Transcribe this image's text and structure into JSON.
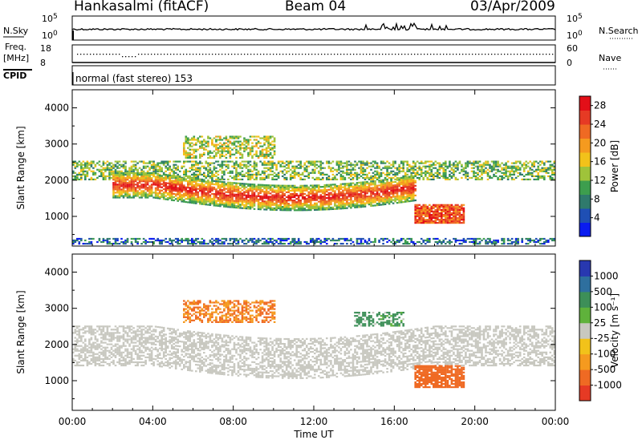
{
  "header": {
    "station": "Hankasalmi (fitACF)",
    "beam": "Beam 04",
    "date": "03/Apr/2009"
  },
  "status_panels": {
    "nsky": {
      "label": "N.Sky",
      "ticks": [
        "10^5",
        "10^0"
      ]
    },
    "nsearch": {
      "label": "N.Search",
      "ticks": [
        "10^5",
        "10^0"
      ]
    },
    "freq": {
      "label_lines": [
        "Freq.",
        "[MHz]"
      ],
      "ticks": [
        "18",
        "8"
      ]
    },
    "nave": {
      "label": "Nave",
      "ticks": [
        "60",
        "0"
      ]
    },
    "cpid": {
      "label": "CPID",
      "text": "normal (fast stereo) 153"
    }
  },
  "chart_data": [
    {
      "type": "heatmap",
      "name": "power",
      "ylabel": "Slant Range [km]",
      "xlabel": "Time UT",
      "x_ticks": [
        "00:00",
        "04:00",
        "08:00",
        "12:00",
        "16:00",
        "20:00",
        "00:00"
      ],
      "x_range_hours": [
        0,
        24
      ],
      "y_ticks": [
        "1000",
        "2000",
        "3000",
        "4000"
      ],
      "y_range_km": [
        180,
        4500
      ],
      "colorbar": {
        "label": "Power [dB]",
        "ticks": [
          "4",
          "8",
          "12",
          "16",
          "20",
          "24",
          "28"
        ],
        "range": [
          0,
          30
        ],
        "colors": [
          "#0a1cf0",
          "#1f4fb4",
          "#2f7a6c",
          "#3d9e4e",
          "#9fc33a",
          "#f2c21a",
          "#f59a1f",
          "#ef6a23",
          "#e63a24",
          "#e30f18"
        ]
      },
      "structures": [
        {
          "feature": "main scatter band",
          "hours": [
            0,
            24
          ],
          "range_km": [
            2000,
            2500
          ],
          "power_db": 12
        },
        {
          "feature": "intense band",
          "hours": [
            2,
            17
          ],
          "range_km": [
            1500,
            2200
          ],
          "power_db": 24
        },
        {
          "feature": "near-range ground clutter",
          "hours": [
            0,
            24
          ],
          "range_km": [
            180,
            400
          ],
          "power_db": 6
        },
        {
          "feature": "upper patch",
          "hours": [
            5.5,
            10
          ],
          "range_km": [
            2600,
            3200
          ],
          "power_db": 14
        },
        {
          "feature": "afternoon blob",
          "hours": [
            17,
            19.5
          ],
          "range_km": [
            800,
            1300
          ],
          "power_db": 24
        }
      ]
    },
    {
      "type": "heatmap",
      "name": "velocity",
      "ylabel": "Slant Range [km]",
      "xlabel": "Time UT",
      "x_ticks": [
        "00:00",
        "04:00",
        "08:00",
        "12:00",
        "16:00",
        "20:00",
        "00:00"
      ],
      "x_range_hours": [
        0,
        24
      ],
      "y_ticks": [
        "1000",
        "2000",
        "3000",
        "4000"
      ],
      "y_range_km": [
        180,
        4500
      ],
      "colorbar": {
        "label": "Velocity [m s⁻¹]",
        "ticks": [
          "1000",
          "500",
          "100",
          "25",
          "-25",
          "-100",
          "-500",
          "-1000"
        ],
        "colors": [
          "#2838b0",
          "#2e6f9e",
          "#3d8f58",
          "#5fb23b",
          "#c8c8c0",
          "#f2c21a",
          "#f59a1f",
          "#ef6a23",
          "#e63a24"
        ]
      },
      "structures": [
        {
          "feature": "ground scatter band",
          "hours": [
            0,
            24
          ],
          "range_km": [
            1400,
            2500
          ],
          "velocity_ms": 0
        },
        {
          "feature": "upper patch",
          "hours": [
            5.5,
            10
          ],
          "range_km": [
            2600,
            3200
          ],
          "velocity_ms": -300
        },
        {
          "feature": "afternoon patch",
          "hours": [
            14,
            16.5
          ],
          "range_km": [
            2500,
            2900
          ],
          "velocity_ms": 150
        },
        {
          "feature": "afternoon blob",
          "hours": [
            17,
            19.5
          ],
          "range_km": [
            800,
            1400
          ],
          "velocity_ms": -600
        }
      ]
    }
  ]
}
